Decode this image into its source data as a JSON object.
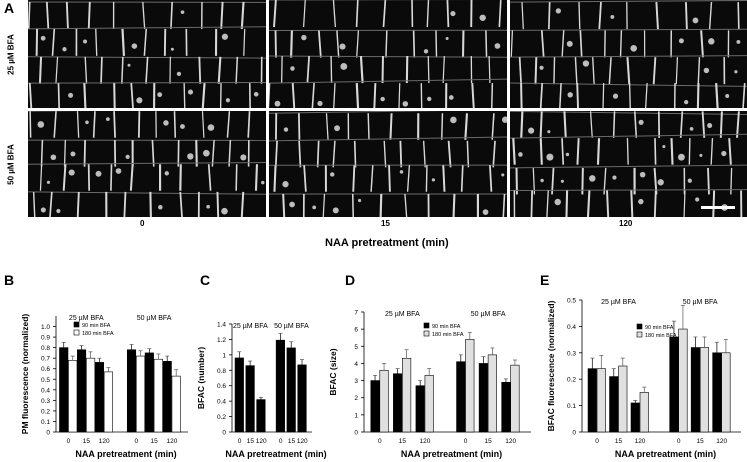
{
  "panel_a": {
    "letter": "A",
    "row_labels": [
      "25 µM BFA",
      "50 µM BFA"
    ],
    "column_labels": [
      "0",
      "15",
      "120"
    ],
    "xlabel": "NAA pretreatment (min)",
    "scale_bar_present": true
  },
  "chart_data": [
    {
      "panel": "B",
      "type": "bar",
      "ylabel": "PM fluorescence (normalized)",
      "xlabel": "NAA pretreatment (min)",
      "ylim": [
        0,
        1.1
      ],
      "yticks": [
        "0",
        "0.1",
        "0.2",
        "0.3",
        "0.4",
        "0.5",
        "0.6",
        "0.7",
        "0.8",
        "0.9",
        "1.0"
      ],
      "group_titles": [
        "25 µM BFA",
        "50 µM BFA"
      ],
      "categories": [
        "0",
        "15",
        "120",
        "0",
        "15",
        "120"
      ],
      "legend": [
        "90 min BFA",
        "180 min BFA"
      ],
      "series": [
        {
          "name": "90 min BFA",
          "color": "#000000",
          "values": [
            0.8,
            0.78,
            0.66,
            0.78,
            0.75,
            0.67
          ],
          "errors": [
            0.05,
            0.04,
            0.04,
            0.05,
            0.04,
            0.05
          ]
        },
        {
          "name": "180 min BFA",
          "color": "#ffffff",
          "values": [
            0.68,
            0.7,
            0.57,
            0.72,
            0.69,
            0.53
          ],
          "errors": [
            0.04,
            0.06,
            0.04,
            0.05,
            0.05,
            0.06
          ]
        }
      ]
    },
    {
      "panel": "C",
      "type": "bar",
      "ylabel": "BFAC (number)",
      "xlabel": "NAA pretreatment (min)",
      "ylim": [
        0,
        1.4
      ],
      "yticks": [
        "0",
        "0.2",
        "0.4",
        "0.6",
        "0.8",
        "1",
        "1.2",
        "1.4"
      ],
      "group_titles": [
        "25 µM BFA",
        "50 µM BFA"
      ],
      "categories": [
        "0",
        "15",
        "120",
        "0",
        "15",
        "120"
      ],
      "series": [
        {
          "name": "",
          "color": "#000000",
          "values": [
            0.96,
            0.86,
            0.42,
            1.19,
            1.09,
            0.87
          ],
          "errors": [
            0.08,
            0.06,
            0.03,
            0.09,
            0.08,
            0.07
          ]
        }
      ]
    },
    {
      "panel": "D",
      "type": "bar",
      "ylabel": "BFAC (size)",
      "xlabel": "NAA pretreatment (min)",
      "ylim": [
        0,
        7
      ],
      "yticks": [
        "0",
        "1",
        "2",
        "3",
        "4",
        "5",
        "6",
        "7"
      ],
      "group_titles": [
        "25 µM BFA",
        "50 µM BFA"
      ],
      "categories": [
        "0",
        "15",
        "120",
        "0",
        "15",
        "120"
      ],
      "legend": [
        "90 min BFA",
        "180 min BFA"
      ],
      "series": [
        {
          "name": "90 min BFA",
          "color": "#000000",
          "values": [
            3.0,
            3.4,
            2.7,
            4.1,
            4.0,
            2.9
          ],
          "errors": [
            0.3,
            0.3,
            0.3,
            0.4,
            0.4,
            0.2
          ]
        },
        {
          "name": "180 min BFA",
          "color": "#e0e0e0",
          "values": [
            3.6,
            4.3,
            3.3,
            5.4,
            4.5,
            3.9
          ],
          "errors": [
            0.4,
            0.5,
            0.4,
            0.4,
            0.4,
            0.3
          ]
        }
      ]
    },
    {
      "panel": "E",
      "type": "bar",
      "ylabel": "BFAC fluorescence (normalized)",
      "xlabel": "NAA pretreatment (min)",
      "ylim": [
        0,
        0.5
      ],
      "yticks": [
        "0",
        "0.1",
        "0.2",
        "0.3",
        "0.4",
        "0.5"
      ],
      "group_titles": [
        "25 µM BFA",
        "50 µM BFA"
      ],
      "categories": [
        "0",
        "15",
        "120",
        "0",
        "15",
        "120"
      ],
      "legend": [
        "90 min BFA",
        "180 min BFA"
      ],
      "series": [
        {
          "name": "90 min BFA",
          "color": "#000000",
          "values": [
            0.24,
            0.21,
            0.11,
            0.36,
            0.32,
            0.3
          ],
          "errors": [
            0.04,
            0.03,
            0.01,
            0.06,
            0.04,
            0.04
          ]
        },
        {
          "name": "180 min BFA",
          "color": "#e0e0e0",
          "values": [
            0.24,
            0.25,
            0.15,
            0.39,
            0.32,
            0.3
          ],
          "errors": [
            0.05,
            0.03,
            0.02,
            0.09,
            0.04,
            0.05
          ]
        }
      ]
    }
  ],
  "panel_letters": [
    "A",
    "B",
    "C",
    "D",
    "E"
  ]
}
